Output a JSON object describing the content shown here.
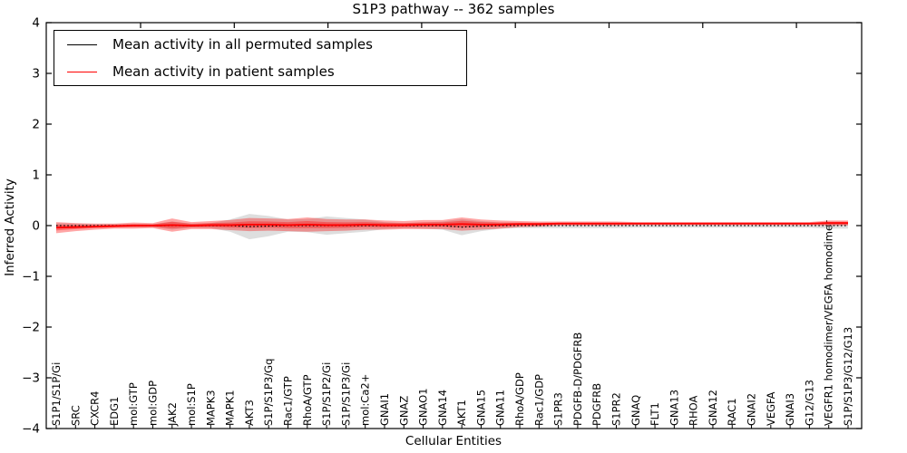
{
  "chart_data": {
    "type": "line",
    "title": "S1P3 pathway -- 362 samples",
    "xlabel": "Cellular Entities",
    "ylabel": "Inferred Activity",
    "ylim": [
      -4,
      4
    ],
    "yticks": [
      4,
      3,
      2,
      1,
      0,
      -1,
      -2,
      -3,
      -4
    ],
    "ytick_labels": [
      "4",
      "3",
      "2",
      "1",
      "0",
      "−1",
      "−2",
      "−3",
      "−4"
    ],
    "grid": false,
    "legend_position": "upper left",
    "categories": [
      "S1P1/S1P/Gi",
      "SRC",
      "CXCR4",
      "EDG1",
      "mol:GTP",
      "mol:GDP",
      "JAK2",
      "mol:S1P",
      "MAPK3",
      "MAPK1",
      "AKT3",
      "S1P/S1P3/Gq",
      "Rac1/GTP",
      "RhoA/GTP",
      "S1P/S1P2/Gi",
      "S1P/S1P3/Gi",
      "mol:Ca2+",
      "GNAI1",
      "GNAZ",
      "GNAO1",
      "GNA14",
      "AKT1",
      "GNA15",
      "GNA11",
      "RhoA/GDP",
      "Rac1/GDP",
      "S1PR3",
      "PDGFB-D/PDGFRB",
      "PDGFRB",
      "S1PR2",
      "GNAQ",
      "FLT1",
      "GNA13",
      "RHOA",
      "GNA12",
      "RAC1",
      "GNAI2",
      "VEGFA",
      "GNAI3",
      "G12/G13",
      "VEGFR1 homodimer/VEGFA homodimer",
      "S1P/S1P3/G12/G13"
    ],
    "series": [
      {
        "name": "Mean activity in all permuted samples",
        "color": "#000000",
        "line_style": "dotted",
        "band_color": "#888888",
        "band_opacity": 0.28,
        "values": [
          0,
          0,
          0,
          0,
          0,
          0,
          0,
          0,
          0,
          0,
          -0.02,
          -0.01,
          0,
          0,
          0,
          0,
          0,
          0,
          0,
          0,
          0,
          -0.03,
          -0.01,
          0,
          0,
          0,
          0,
          0,
          0,
          0,
          0,
          0,
          0,
          0,
          0,
          0,
          0,
          0,
          0,
          0,
          0,
          0
        ],
        "band_halfwidth": [
          0.05,
          0.04,
          0.03,
          0.03,
          0.03,
          0.03,
          0.08,
          0.04,
          0.05,
          0.12,
          0.25,
          0.2,
          0.12,
          0.13,
          0.18,
          0.15,
          0.12,
          0.07,
          0.05,
          0.06,
          0.08,
          0.16,
          0.1,
          0.06,
          0.05,
          0.05,
          0.05,
          0.05,
          0.05,
          0.05,
          0.04,
          0.04,
          0.04,
          0.04,
          0.04,
          0.04,
          0.04,
          0.04,
          0.04,
          0.04,
          0.06,
          0.06
        ]
      },
      {
        "name": "Mean activity in patient samples",
        "color": "#ff0000",
        "line_style": "solid",
        "band_color": "#ff0000",
        "band_opacity": 0.35,
        "values": [
          -0.04,
          -0.03,
          -0.02,
          -0.01,
          0,
          0,
          0.01,
          0,
          0.01,
          0.01,
          0.02,
          0.02,
          0.01,
          0.02,
          0.01,
          0.01,
          0.02,
          0.01,
          0.01,
          0.02,
          0.02,
          0.03,
          0.02,
          0.02,
          0.03,
          0.03,
          0.04,
          0.04,
          0.04,
          0.04,
          0.04,
          0.04,
          0.04,
          0.04,
          0.04,
          0.04,
          0.04,
          0.04,
          0.04,
          0.04,
          0.05,
          0.05
        ],
        "band_halfwidth": [
          0.11,
          0.08,
          0.06,
          0.05,
          0.06,
          0.05,
          0.13,
          0.07,
          0.08,
          0.1,
          0.13,
          0.12,
          0.12,
          0.14,
          0.12,
          0.11,
          0.1,
          0.09,
          0.08,
          0.09,
          0.09,
          0.13,
          0.1,
          0.08,
          0.06,
          0.05,
          0.04,
          0.04,
          0.04,
          0.04,
          0.03,
          0.03,
          0.03,
          0.03,
          0.03,
          0.03,
          0.03,
          0.03,
          0.03,
          0.03,
          0.05,
          0.05
        ]
      }
    ]
  }
}
